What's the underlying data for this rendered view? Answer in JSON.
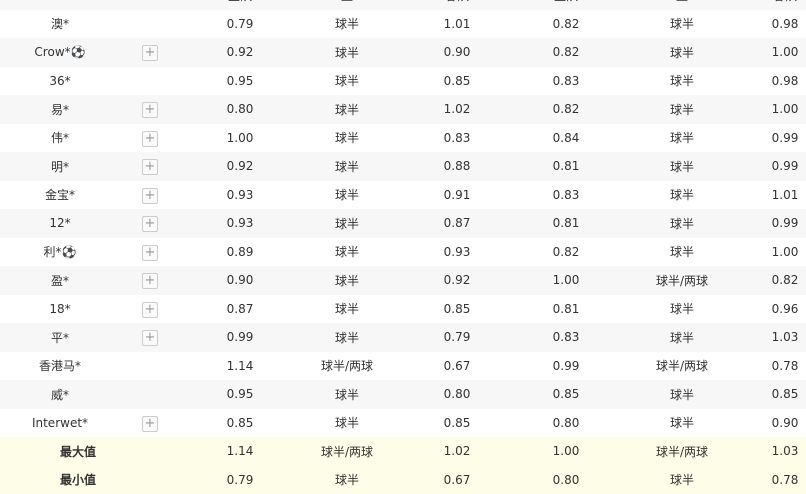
{
  "header": [
    "主队",
    "盘",
    "客队",
    "主队",
    "盘",
    "客队"
  ],
  "rows": [
    {
      "name": "澳*",
      "plus": false,
      "v": [
        "0.79",
        "球半",
        "1.01",
        "0.82",
        "球半",
        "0.98"
      ]
    },
    {
      "name": "Crow*⚽",
      "plus": true,
      "v": [
        "0.92",
        "球半",
        "0.90",
        "0.82",
        "球半",
        "1.00"
      ]
    },
    {
      "name": "36*",
      "plus": false,
      "v": [
        "0.95",
        "球半",
        "0.85",
        "0.83",
        "球半",
        "0.98"
      ]
    },
    {
      "name": "易*",
      "plus": true,
      "v": [
        "0.80",
        "球半",
        "1.02",
        "0.82",
        "球半",
        "1.00"
      ]
    },
    {
      "name": "伟*",
      "plus": true,
      "v": [
        "1.00",
        "球半",
        "0.83",
        "0.84",
        "球半",
        "0.99"
      ]
    },
    {
      "name": "明*",
      "plus": true,
      "v": [
        "0.92",
        "球半",
        "0.88",
        "0.81",
        "球半",
        "0.99"
      ]
    },
    {
      "name": "金宝*",
      "plus": true,
      "v": [
        "0.93",
        "球半",
        "0.91",
        "0.83",
        "球半",
        "1.01"
      ]
    },
    {
      "name": "12*",
      "plus": true,
      "v": [
        "0.93",
        "球半",
        "0.87",
        "0.81",
        "球半",
        "0.99"
      ]
    },
    {
      "name": "利*⚽",
      "plus": true,
      "v": [
        "0.89",
        "球半",
        "0.93",
        "0.82",
        "球半",
        "1.00"
      ]
    },
    {
      "name": "盈*",
      "plus": true,
      "v": [
        "0.90",
        "球半",
        "0.92",
        "1.00",
        "球半/两球",
        "0.82"
      ]
    },
    {
      "name": "18*",
      "plus": true,
      "v": [
        "0.87",
        "球半",
        "0.85",
        "0.81",
        "球半",
        "0.96"
      ]
    },
    {
      "name": "平*",
      "plus": true,
      "v": [
        "0.99",
        "球半",
        "0.79",
        "0.83",
        "球半",
        "1.03"
      ]
    },
    {
      "name": "香港马*",
      "plus": false,
      "v": [
        "1.14",
        "球半/两球",
        "0.67",
        "0.99",
        "球半/两球",
        "0.78"
      ]
    },
    {
      "name": "威*",
      "plus": false,
      "v": [
        "0.95",
        "球半",
        "0.80",
        "0.85",
        "球半",
        "0.85"
      ]
    },
    {
      "name": "Interwet*",
      "plus": true,
      "v": [
        "0.85",
        "球半",
        "0.85",
        "0.80",
        "球半",
        "0.90"
      ]
    }
  ],
  "summary": [
    {
      "name": "最大值",
      "v": [
        "1.14",
        "球半/两球",
        "1.02",
        "1.00",
        "球半/两球",
        "1.03"
      ]
    },
    {
      "name": "最小值",
      "v": [
        "0.79",
        "球半",
        "0.67",
        "0.80",
        "球半",
        "0.78"
      ]
    }
  ],
  "plus_icon": "+"
}
